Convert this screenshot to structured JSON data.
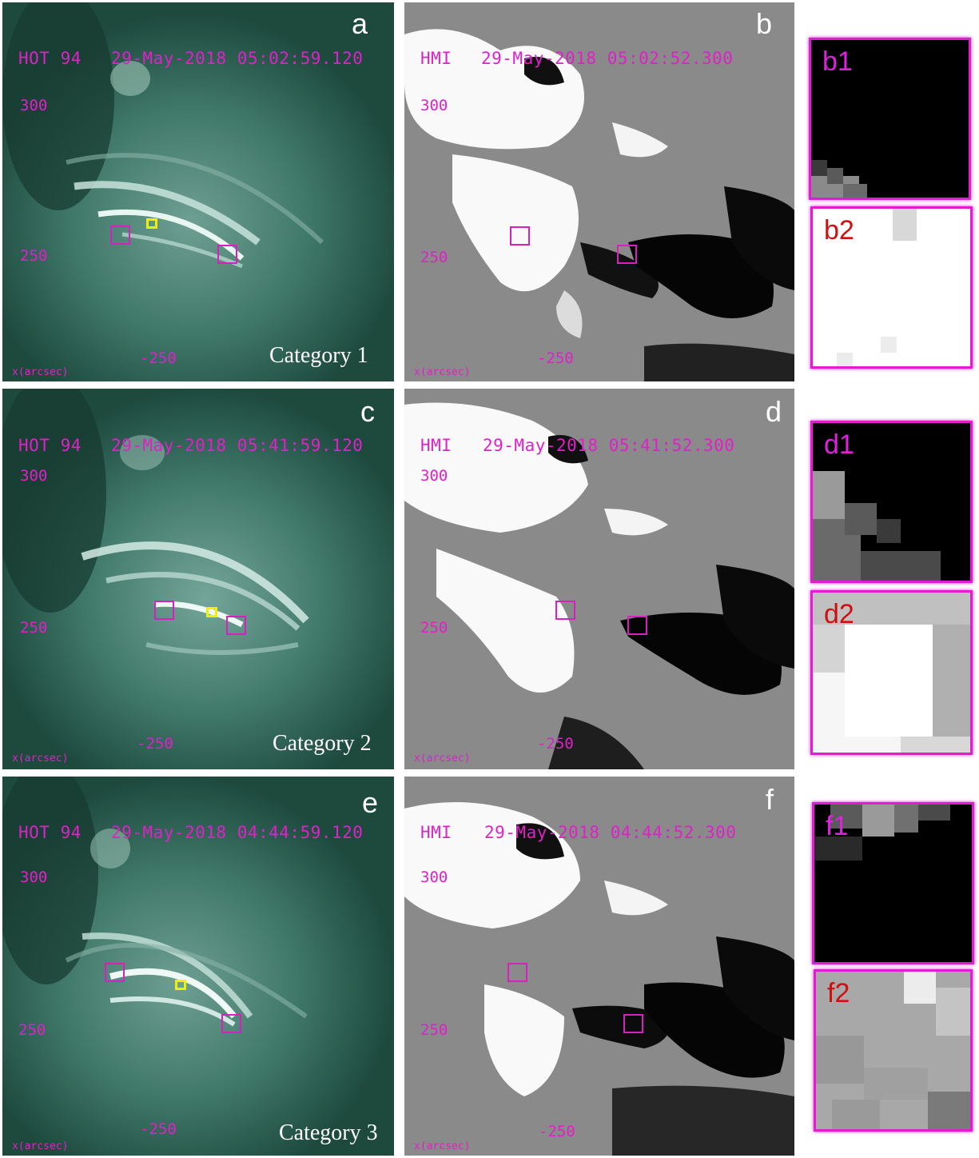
{
  "panels": {
    "a": {
      "letter": "a",
      "instrument": "HOT 94",
      "timestamp": "29-May-2018 05:02:59.120",
      "ytick": "300",
      "ytick2": "250",
      "xtick": "-250",
      "xlabel": "x(arcsec)",
      "category": "Category 1"
    },
    "b": {
      "letter": "b",
      "instrument": "HMI",
      "timestamp": "29-May-2018 05:02:52.300",
      "ytick": "300",
      "ytick2": "250",
      "xtick": "-250",
      "xlabel": "x(arcsec)"
    },
    "c": {
      "letter": "c",
      "instrument": "HOT 94",
      "timestamp": "29-May-2018 05:41:59.120",
      "ytick": "300",
      "ytick2": "250",
      "xtick": "-250",
      "xlabel": "x(arcsec)",
      "category": "Category 2"
    },
    "d": {
      "letter": "d",
      "instrument": "HMI",
      "timestamp": "29-May-2018 05:41:52.300",
      "ytick": "300",
      "ytick2": "250",
      "xtick": "-250",
      "xlabel": "x(arcsec)"
    },
    "e": {
      "letter": "e",
      "instrument": "HOT 94",
      "timestamp": "29-May-2018 04:44:59.120",
      "ytick": "300",
      "ytick2": "250",
      "xtick": "-250",
      "xlabel": "x(arcsec)",
      "category": "Category 3"
    },
    "f": {
      "letter": "f",
      "instrument": "HMI",
      "timestamp": "29-May-2018 04:44:52.300",
      "ytick": "300",
      "ytick2": "250",
      "xtick": "-250",
      "xlabel": "x(arcsec)"
    }
  },
  "insets": {
    "b1": {
      "label": "b1",
      "color": "#e020e0"
    },
    "b2": {
      "label": "b2",
      "color": "#d01010"
    },
    "d1": {
      "label": "d1",
      "color": "#e020e0"
    },
    "d2": {
      "label": "d2",
      "color": "#d01010"
    },
    "f1": {
      "label": "f1",
      "color": "#e020e0"
    },
    "f2": {
      "label": "f2",
      "color": "#d01010"
    }
  },
  "colors": {
    "euv": "#2f6a5a",
    "magnetogram": "#8a8a8a",
    "box": "#d81fbf",
    "footpoint": "#f0f000"
  }
}
